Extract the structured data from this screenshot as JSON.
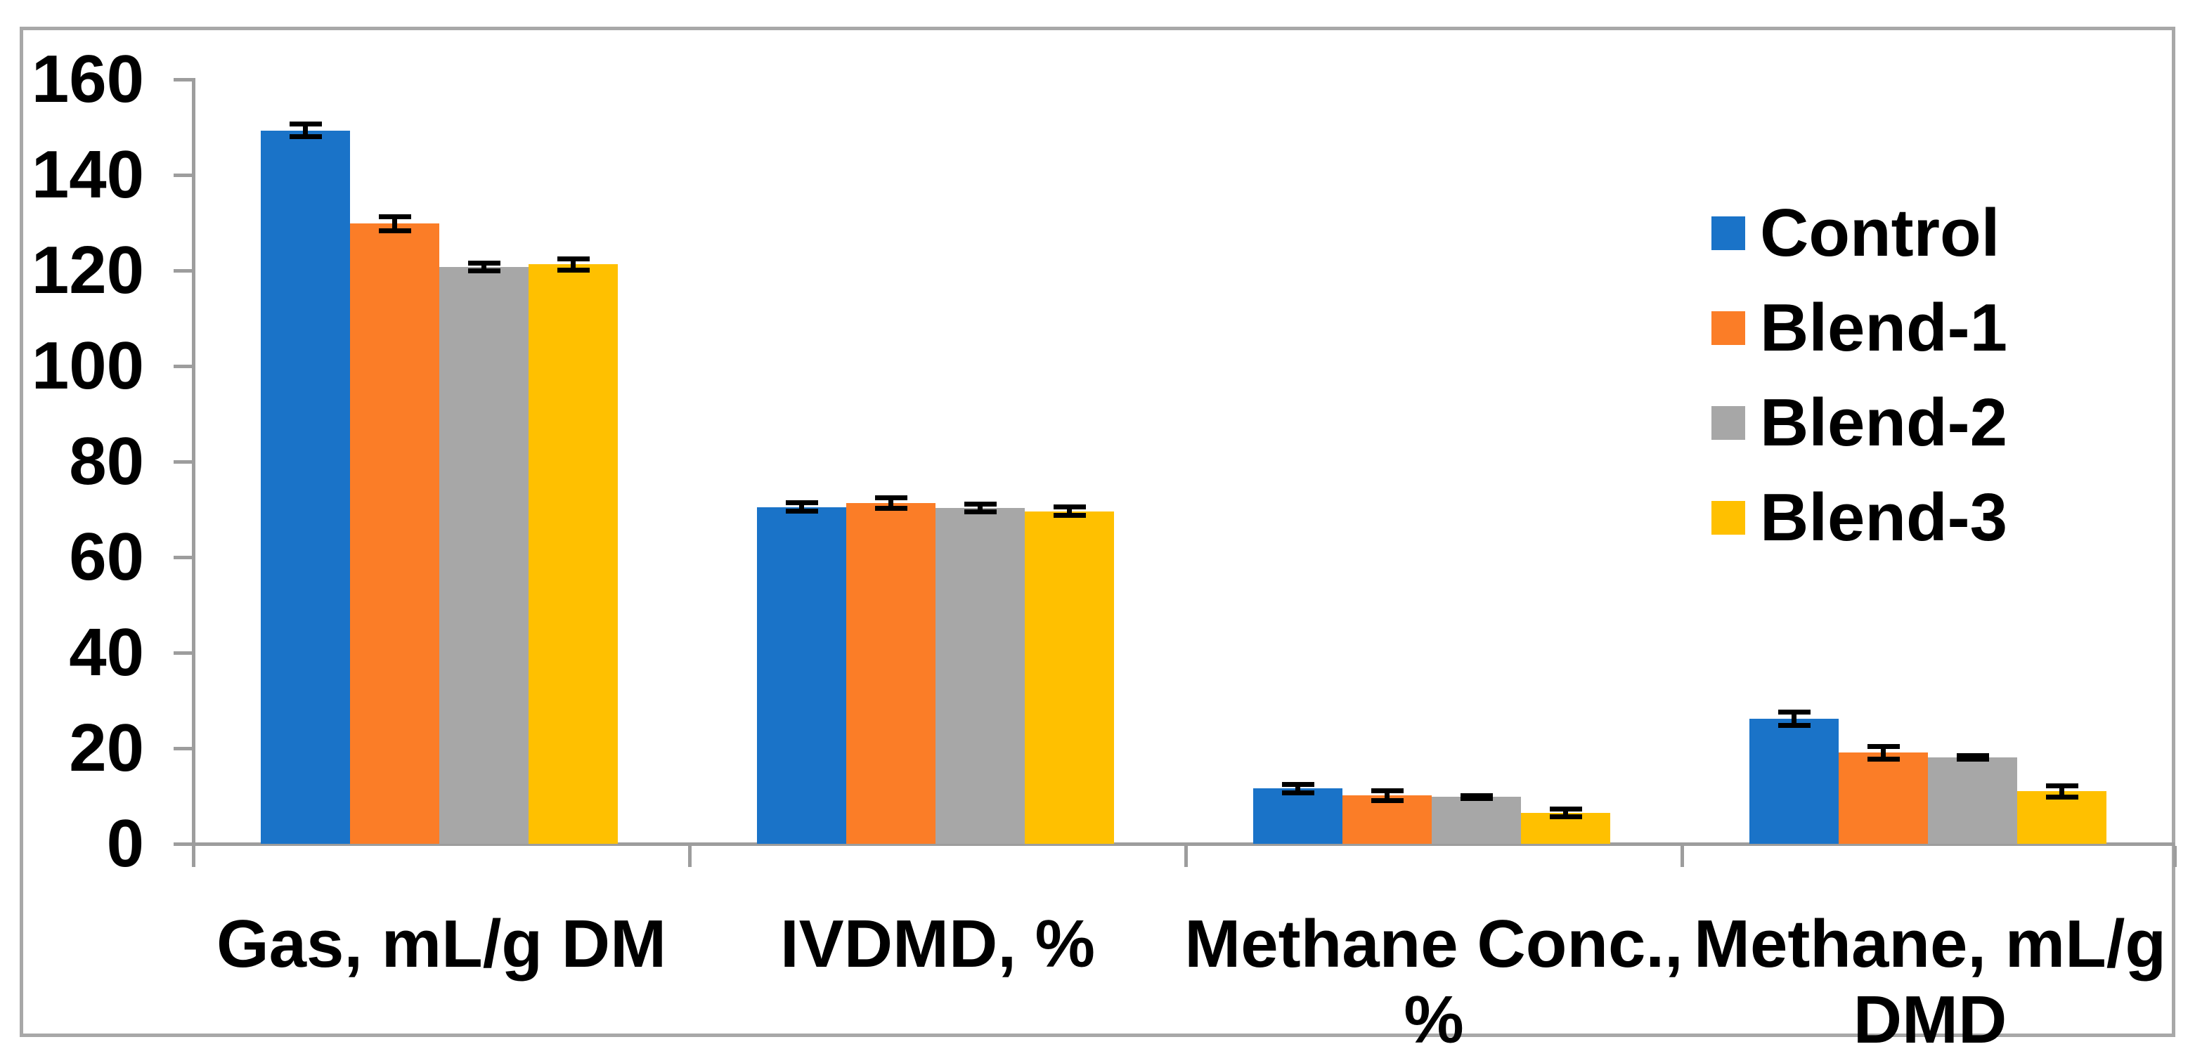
{
  "chart_data": {
    "type": "bar",
    "title": "",
    "xlabel": "",
    "ylabel": "",
    "categories": [
      "Gas, mL/g DM",
      "IVDMD, %",
      "Methane Conc., %",
      "Methane, mL/g DMD"
    ],
    "series": [
      {
        "name": "Control",
        "color": "#1A73C8",
        "values": [
          149.0,
          70.2,
          11.3,
          25.9
        ],
        "errors": [
          1.3,
          0.9,
          0.9,
          1.4
        ]
      },
      {
        "name": "Blend-1",
        "color": "#FB7D27",
        "values": [
          129.5,
          71.0,
          9.8,
          18.8
        ],
        "errors": [
          1.5,
          1.1,
          1.0,
          1.3
        ]
      },
      {
        "name": "Blend-2",
        "color": "#A7A7A7",
        "values": [
          120.5,
          70.0,
          9.5,
          17.8
        ],
        "errors": [
          0.8,
          0.8,
          0.3,
          0.4
        ]
      },
      {
        "name": "Blend-3",
        "color": "#FFC000",
        "values": [
          121.0,
          69.3,
          6.2,
          10.7
        ],
        "errors": [
          1.2,
          0.9,
          0.8,
          1.2
        ]
      }
    ],
    "ylim": [
      0,
      160
    ],
    "ytick_step": 20,
    "yticks": [
      "0",
      "20",
      "40",
      "60",
      "80",
      "100",
      "120",
      "140",
      "160"
    ],
    "grid": false,
    "error_bars": true,
    "legend_position": "right-inside",
    "colors": {
      "axis": "#9D9D9D",
      "frame": "#A8A8A8",
      "error_bar": "#000000",
      "text": "#000000",
      "background": "#FFFFFF"
    }
  }
}
